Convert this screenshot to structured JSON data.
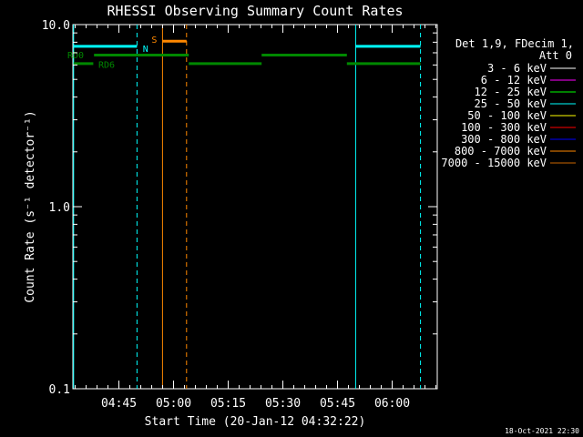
{
  "chart_data": {
    "type": "line",
    "title": "RHESSI Observing Summary Count Rates",
    "xlabel": "Start Time (20-Jan-12 04:32:22)",
    "ylabel": "Count Rate (s⁻¹ detector⁻¹)",
    "y_scale": "log",
    "ylim": [
      0.1,
      10.0
    ],
    "xlim_minutes": [
      0,
      100
    ],
    "x_ticks": [
      {
        "label": "04:45",
        "min": 12.63
      },
      {
        "label": "05:00",
        "min": 27.63
      },
      {
        "label": "05:15",
        "min": 42.63
      },
      {
        "label": "05:30",
        "min": 57.63
      },
      {
        "label": "05:45",
        "min": 72.63
      },
      {
        "label": "06:00",
        "min": 87.63
      }
    ],
    "y_ticks": [
      {
        "label": "10.0",
        "value": 10.0
      },
      {
        "label": "1.0",
        "value": 1.0
      },
      {
        "label": "0.1",
        "value": 0.1
      }
    ],
    "legend_header": [
      "Det 1,9, FDecim 1,",
      "Att 0"
    ],
    "series": [
      {
        "name": "3 - 6 keV",
        "color": "#ffffff"
      },
      {
        "name": "6 - 12 keV",
        "color": "#ff00ff"
      },
      {
        "name": "12 - 25 keV",
        "color": "#00ff00"
      },
      {
        "name": "25 - 50 keV",
        "color": "#00ffff"
      },
      {
        "name": "50 - 100 keV",
        "color": "#ffff00"
      },
      {
        "name": "100 - 300 keV",
        "color": "#ff0000"
      },
      {
        "name": "300 - 800 keV",
        "color": "#0000ff"
      },
      {
        "name": "800 - 7000 keV",
        "color": "#ff8800"
      },
      {
        "name": "7000 - 15000 keV",
        "color": "#cc6600"
      }
    ],
    "flag_bars": [
      {
        "color": "#00ffff",
        "y": 7.6,
        "spans": [
          [
            0.2,
            17.6
          ],
          [
            77.6,
            95.4
          ]
        ]
      },
      {
        "color": "#008800",
        "y": 6.8,
        "spans": [
          [
            5.8,
            31.8
          ],
          [
            51.8,
            75.2
          ]
        ]
      },
      {
        "color": "#008800",
        "y": 6.1,
        "spans": [
          [
            0.2,
            5.6
          ],
          [
            31.8,
            51.8
          ],
          [
            75.2,
            95.4
          ]
        ]
      },
      {
        "color": "#ff8800",
        "y": 8.1,
        "spans": [
          [
            24.6,
            31.2
          ]
        ]
      }
    ],
    "vertical_lines": [
      {
        "color": "#00ffff",
        "x": 0.2,
        "style": "solid"
      },
      {
        "color": "#00ffff",
        "x": 17.6,
        "style": "dashed"
      },
      {
        "color": "#ff8800",
        "x": 24.6,
        "style": "solid"
      },
      {
        "color": "#ff8800",
        "x": 31.2,
        "style": "dashed"
      },
      {
        "color": "#00ffff",
        "x": 77.6,
        "style": "solid"
      },
      {
        "color": "#00ffff",
        "x": 95.4,
        "style": "dashed"
      }
    ],
    "annotations": [
      {
        "text": "RD0",
        "color": "#008800",
        "x": -1.5,
        "y": 6.85
      },
      {
        "text": "RD6",
        "color": "#008800",
        "x": 7.0,
        "y": 6.05
      },
      {
        "text": "N",
        "color": "#00ffff",
        "x": 19.2,
        "y": 7.4
      },
      {
        "text": "S",
        "color": "#ff8800",
        "x": 21.6,
        "y": 8.3
      }
    ],
    "footer_date": "18-Oct-2021 22:30"
  }
}
